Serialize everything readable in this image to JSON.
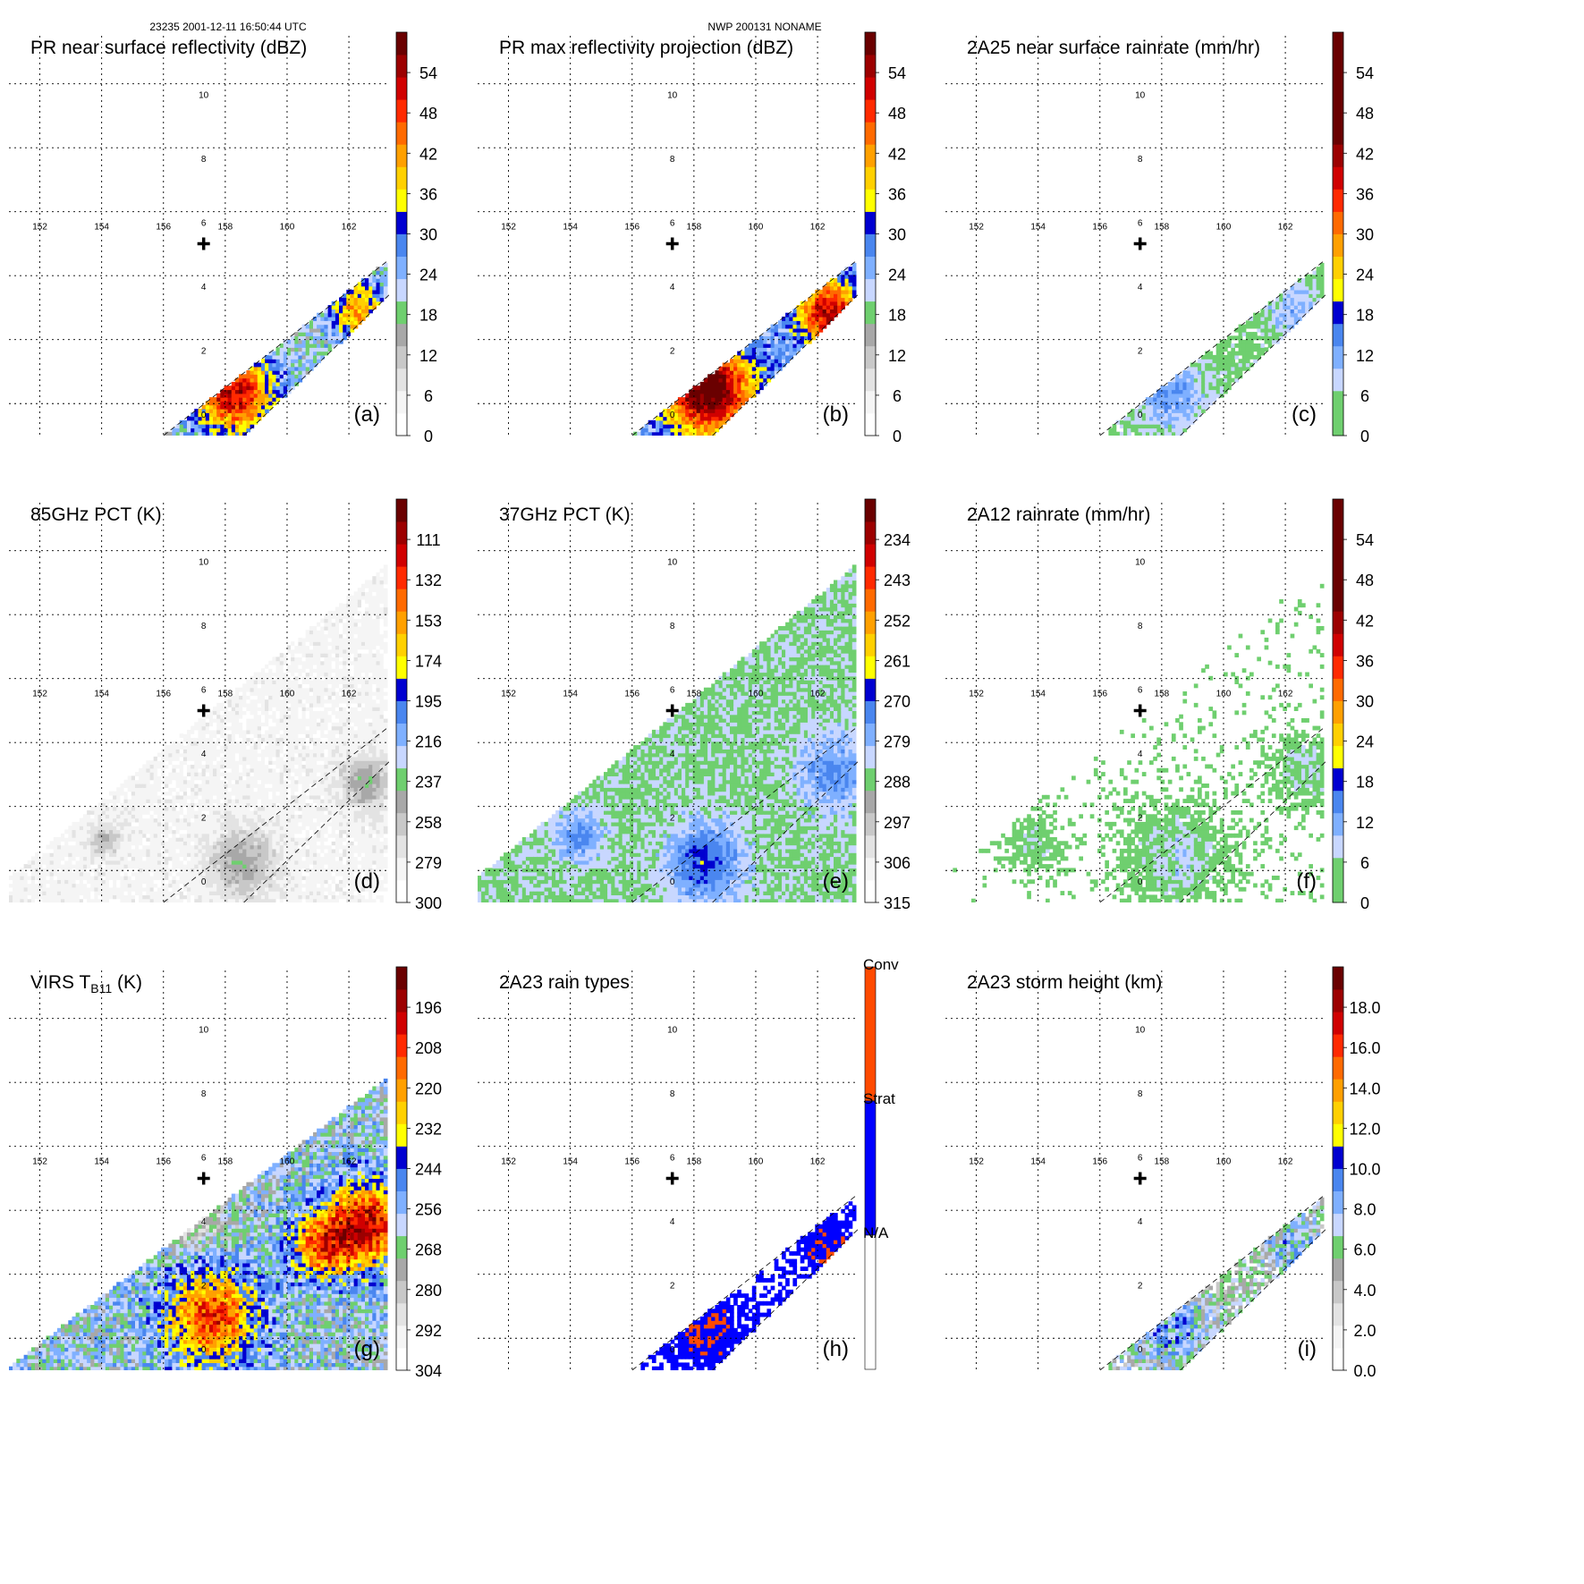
{
  "header": {
    "left": "23235 2001-12-11 16:50:44 UTC",
    "center": "NWP 200131 NONAME"
  },
  "colors": {
    "zero": "#ffffff",
    "grays": [
      "#f5f5f5",
      "#e3e3e3",
      "#c8c8c8",
      "#a8a8a8"
    ],
    "green": "#6fcf6f",
    "blues": [
      "#c8d7ff",
      "#7fb0ff",
      "#4a86ef",
      "#1e3ee0",
      "#0000d0"
    ],
    "warm": [
      "#ffff00",
      "#ffd000",
      "#ffa000",
      "#ff6a00",
      "#ff2a00",
      "#d00000",
      "#9c0000",
      "#6a0000"
    ],
    "rain_conv": "#ff4a00",
    "rain_strat": "#0000ff",
    "rain_na": "#ffffff",
    "cross": "#000000"
  },
  "chart_data": [
    {
      "id": "a",
      "type": "heatmap",
      "title": "PR near surface reflectivity (dBZ)",
      "panel_label": "(a)",
      "lon_ticks": [
        "152",
        "154",
        "156",
        "158",
        "160",
        "162"
      ],
      "lat_ticks": [
        "10",
        "8",
        "6",
        "4",
        "2",
        "0"
      ],
      "xlim": [
        150,
        162.3
      ],
      "ylim": [
        -1,
        11.5
      ],
      "swath": "pr",
      "colorbar": {
        "kind": "std",
        "ticks": [
          "54",
          "48",
          "42",
          "36",
          "30",
          "24",
          "18",
          "12",
          "6",
          "0"
        ],
        "range": [
          0,
          60
        ]
      },
      "field": {
        "base": 20,
        "noise": 6,
        "blobs": [
          {
            "lon": 157.2,
            "lat": 0.3,
            "r": 1.3,
            "v": 33
          },
          {
            "lon": 161.2,
            "lat": 2.9,
            "r": 0.9,
            "v": 22
          }
        ]
      }
    },
    {
      "id": "b",
      "type": "heatmap",
      "title": "PR max reflectivity projection (dBZ)",
      "panel_label": "(b)",
      "lon_ticks": [
        "152",
        "154",
        "156",
        "158",
        "160",
        "162"
      ],
      "lat_ticks": [
        "10",
        "8",
        "6",
        "4",
        "2",
        "0"
      ],
      "xlim": [
        150,
        162.3
      ],
      "ylim": [
        -1,
        11.5
      ],
      "swath": "pr",
      "colorbar": {
        "kind": "std",
        "ticks": [
          "54",
          "48",
          "42",
          "36",
          "30",
          "24",
          "18",
          "12",
          "6",
          "0"
        ],
        "range": [
          0,
          60
        ]
      },
      "field": {
        "base": 24,
        "noise": 5,
        "blobs": [
          {
            "lon": 157.4,
            "lat": 0.4,
            "r": 1.4,
            "v": 38
          },
          {
            "lon": 161.3,
            "lat": 2.8,
            "r": 1.0,
            "v": 30
          }
        ]
      }
    },
    {
      "id": "c",
      "type": "heatmap",
      "title": "2A25 near surface rainrate (mm/hr)",
      "panel_label": "(c)",
      "lon_ticks": [
        "152",
        "154",
        "156",
        "158",
        "160",
        "162"
      ],
      "lat_ticks": [
        "10",
        "8",
        "6",
        "4",
        "2",
        "0"
      ],
      "xlim": [
        150,
        162.3
      ],
      "ylim": [
        -1,
        11.5
      ],
      "swath": "pr",
      "colorbar": {
        "kind": "rain",
        "ticks": [
          "54",
          "48",
          "42",
          "36",
          "30",
          "24",
          "18",
          "12",
          "6",
          "0"
        ],
        "range": [
          0,
          60
        ]
      },
      "field": {
        "base": 4,
        "noise": 3,
        "blobs": [
          {
            "lon": 157.2,
            "lat": 0.3,
            "r": 1.2,
            "v": 9
          },
          {
            "lon": 161.2,
            "lat": 2.9,
            "r": 0.9,
            "v": 7
          }
        ]
      }
    },
    {
      "id": "d",
      "type": "heatmap",
      "title": "85GHz PCT (K)",
      "panel_label": "(d)",
      "lon_ticks": [
        "152",
        "154",
        "156",
        "158",
        "160",
        "162"
      ],
      "lat_ticks": [
        "10",
        "8",
        "6",
        "4",
        "2",
        "0"
      ],
      "xlim": [
        150,
        162.3
      ],
      "ylim": [
        -1,
        11.5
      ],
      "swath": "tmi",
      "colorbar": {
        "kind": "std",
        "ticks": [
          "111",
          "132",
          "153",
          "174",
          "195",
          "216",
          "237",
          "258",
          "279",
          "300"
        ],
        "range": [
          300,
          90
        ]
      },
      "field": {
        "base": 283,
        "noise": 8,
        "blobs": [
          {
            "lon": 157.5,
            "lat": 0.2,
            "r": 1.0,
            "v": -40
          },
          {
            "lon": 161.5,
            "lat": 2.7,
            "r": 0.8,
            "v": -40
          },
          {
            "lon": 153.0,
            "lat": 0.9,
            "r": 0.5,
            "v": -30
          }
        ]
      }
    },
    {
      "id": "e",
      "type": "heatmap",
      "title": "37GHz PCT (K)",
      "panel_label": "(e)",
      "lon_ticks": [
        "152",
        "154",
        "156",
        "158",
        "160",
        "162"
      ],
      "lat_ticks": [
        "10",
        "8",
        "6",
        "4",
        "2",
        "0"
      ],
      "xlim": [
        150,
        162.3
      ],
      "ylim": [
        -1,
        11.5
      ],
      "swath": "tmi",
      "colorbar": {
        "kind": "std",
        "ticks": [
          "234",
          "243",
          "252",
          "261",
          "270",
          "279",
          "288",
          "297",
          "306",
          "315"
        ],
        "range": [
          315,
          225
        ]
      },
      "field": {
        "base": 286,
        "noise": 4,
        "blobs": [
          {
            "lon": 157.3,
            "lat": 0.2,
            "r": 1.2,
            "v": -18
          },
          {
            "lon": 161.5,
            "lat": 3.0,
            "r": 1.2,
            "v": -12
          },
          {
            "lon": 153.2,
            "lat": 1.0,
            "r": 0.8,
            "v": -12
          }
        ]
      }
    },
    {
      "id": "f",
      "type": "heatmap",
      "title": "2A12 rainrate (mm/hr)",
      "panel_label": "(f)",
      "lon_ticks": [
        "152",
        "154",
        "156",
        "158",
        "160",
        "162"
      ],
      "lat_ticks": [
        "10",
        "8",
        "6",
        "4",
        "2",
        "0"
      ],
      "xlim": [
        150,
        162.3
      ],
      "ylim": [
        -1,
        11.5
      ],
      "swath": "tmi",
      "colorbar": {
        "kind": "rain",
        "ticks": [
          "54",
          "48",
          "42",
          "36",
          "30",
          "24",
          "18",
          "12",
          "6",
          "0"
        ],
        "range": [
          0,
          60
        ]
      },
      "field": {
        "base": 0,
        "noise": 3,
        "blobs": [
          {
            "lon": 157.4,
            "lat": 0.4,
            "r": 1.6,
            "v": 8
          },
          {
            "lon": 161.6,
            "lat": 3.1,
            "r": 1.1,
            "v": 7
          },
          {
            "lon": 152.8,
            "lat": 0.8,
            "r": 0.9,
            "v": 6
          }
        ]
      }
    },
    {
      "id": "g",
      "type": "heatmap",
      "title": "VIRS T",
      "title_sub": "B11",
      "title_unit": " (K)",
      "panel_label": "(g)",
      "lon_ticks": [
        "152",
        "154",
        "156",
        "158",
        "160",
        "162"
      ],
      "lat_ticks": [
        "10",
        "8",
        "6",
        "4",
        "2",
        "0"
      ],
      "xlim": [
        150,
        162.3
      ],
      "ylim": [
        -1,
        11.5
      ],
      "swath": "virs",
      "colorbar": {
        "kind": "std",
        "ticks": [
          "196",
          "208",
          "220",
          "232",
          "244",
          "256",
          "268",
          "280",
          "292",
          "304"
        ],
        "range": [
          304,
          184
        ]
      },
      "field": {
        "base": 262,
        "noise": 14,
        "blobs": [
          {
            "lon": 156.5,
            "lat": 0.6,
            "r": 1.5,
            "v": -55
          },
          {
            "lon": 161.5,
            "lat": 3.5,
            "r": 1.3,
            "v": -65
          },
          {
            "lon": 160.0,
            "lat": 2.8,
            "r": 1.0,
            "v": -45
          },
          {
            "lon": 156.0,
            "lat": 3.6,
            "r": 1.0,
            "v": 20
          }
        ]
      }
    },
    {
      "id": "h",
      "type": "heatmap",
      "title": "2A23 rain types",
      "panel_label": "(h)",
      "lon_ticks": [
        "152",
        "154",
        "156",
        "158",
        "160",
        "162"
      ],
      "lat_ticks": [
        "10",
        "8",
        "6",
        "4",
        "2",
        "0"
      ],
      "xlim": [
        150,
        162.3
      ],
      "ylim": [
        -1,
        11.5
      ],
      "swath": "pr",
      "colorbar": {
        "kind": "raintype",
        "labels": [
          "Conv",
          "Strat",
          "N/A"
        ]
      },
      "field": {
        "base": 1.0,
        "noise": 0.6,
        "blobs": [
          {
            "lon": 157.2,
            "lat": 0.3,
            "r": 1.3,
            "v": 1.2
          },
          {
            "lon": 161.2,
            "lat": 2.9,
            "r": 1.0,
            "v": 1.0
          }
        ]
      }
    },
    {
      "id": "i",
      "type": "heatmap",
      "title": "2A23 storm height (km)",
      "panel_label": "(i)",
      "lon_ticks": [
        "152",
        "154",
        "156",
        "158",
        "160",
        "162"
      ],
      "lat_ticks": [
        "10",
        "8",
        "6",
        "4",
        "2",
        "0"
      ],
      "xlim": [
        150,
        162.3
      ],
      "ylim": [
        -1,
        11.5
      ],
      "swath": "pr",
      "colorbar": {
        "kind": "std",
        "ticks": [
          "18.0",
          "16.0",
          "14.0",
          "12.0",
          "10.0",
          "8.0",
          "6.0",
          "4.0",
          "2.0",
          "0.0"
        ],
        "range": [
          0,
          20
        ]
      },
      "field": {
        "base": 5,
        "noise": 2.5,
        "blobs": [
          {
            "lon": 157.2,
            "lat": 0.3,
            "r": 1.3,
            "v": 3.5
          },
          {
            "lon": 161.2,
            "lat": 2.9,
            "r": 0.9,
            "v": 3
          }
        ]
      }
    }
  ]
}
